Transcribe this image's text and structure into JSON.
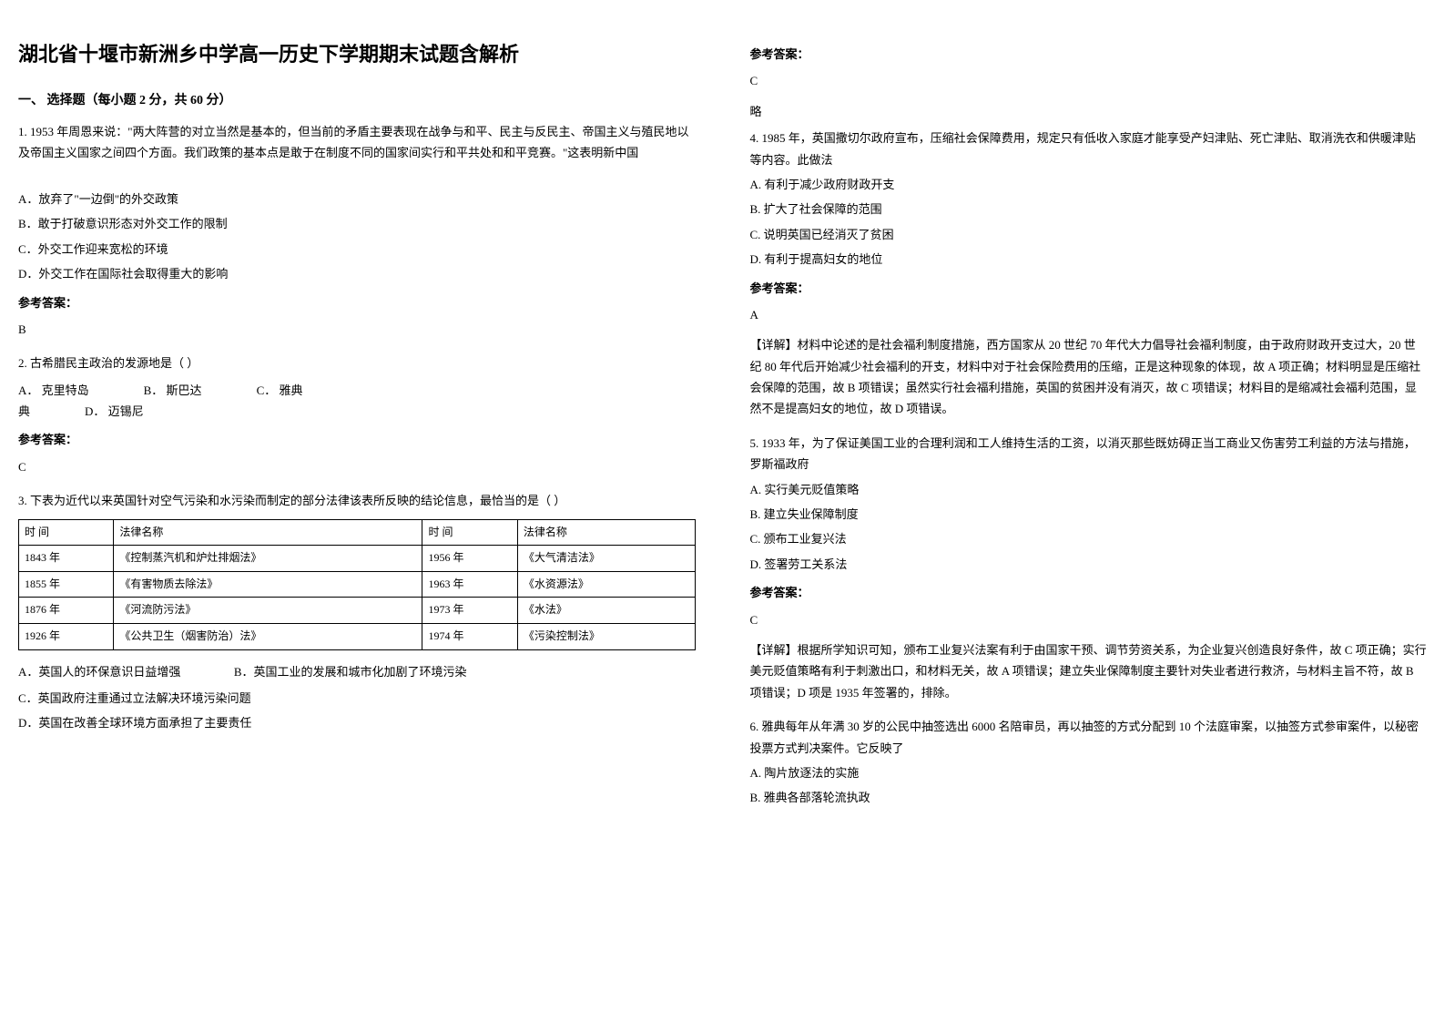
{
  "title": "湖北省十堰市新洲乡中学高一历史下学期期末试题含解析",
  "section1_heading": "一、 选择题（每小题 2 分，共 60 分）",
  "q1": {
    "text": "1. 1953 年周恩来说：\"两大阵营的对立当然是基本的，但当前的矛盾主要表现在战争与和平、民主与反民主、帝国主义与殖民地以及帝国主义国家之间四个方面。我们政策的基本点是敢于在制度不同的国家间实行和平共处和和平竞赛。\"这表明新中国",
    "optA": "A．放弃了\"一边倒\"的外交政策",
    "optB": "B．敢于打破意识形态对外交工作的限制",
    "optC": "C．外交工作迎来宽松的环境",
    "optD": "D．外交工作在国际社会取得重大的影响",
    "answer_label": "参考答案：",
    "answer": "B"
  },
  "q2": {
    "text": "2. 古希腊民主政治的发源地是（   ）",
    "optA": "A． 克里特岛",
    "optB": "B． 斯巴达",
    "optC": "C． 雅典",
    "optD": "D． 迈锡尼",
    "answer_label": "参考答案：",
    "answer": "C"
  },
  "q3": {
    "text": "3. 下表为近代以来英国针对空气污染和水污染而制定的部分法律该表所反映的结论信息，最恰当的是（    ）",
    "col1": "时     间",
    "col2": "法律名称",
    "col3": "时     间",
    "col4": "法律名称",
    "rows": [
      [
        "1843 年",
        "《控制蒸汽机和炉灶排烟法》",
        "1956 年",
        "《大气清洁法》"
      ],
      [
        "1855 年",
        "《有害物质去除法》",
        "1963 年",
        "《水资源法》"
      ],
      [
        "1876 年",
        "《河流防污法》",
        "1973 年",
        "《水法》"
      ],
      [
        "1926 年",
        "《公共卫生（烟害防治）法》",
        "1974 年",
        "《污染控制法》"
      ]
    ],
    "optA": "A．英国人的环保意识日益增强",
    "optB": "B．英国工业的发展和城市化加剧了环境污染",
    "optC": "C．英国政府注重通过立法解决环境污染问题",
    "optD": "D．英国在改善全球环境方面承担了主要责任",
    "answer_label": "参考答案：",
    "answer": "C",
    "note": "略"
  },
  "q4": {
    "text": "4. 1985 年，英国撒切尔政府宣布，压缩社会保障费用，规定只有低收入家庭才能享受产妇津贴、死亡津贴、取消洗衣和供暖津贴等内容。此做法",
    "optA": "A. 有利于减少政府财政开支",
    "optB": "B. 扩大了社会保障的范围",
    "optC": "C. 说明英国已经消灭了贫困",
    "optD": "D. 有利于提高妇女的地位",
    "answer_label": "参考答案：",
    "answer": "A",
    "explain": "【详解】材料中论述的是社会福利制度措施，西方国家从 20 世纪 70 年代大力倡导社会福利制度，由于政府财政开支过大，20 世纪 80 年代后开始减少社会福利的开支，材料中对于社会保险费用的压缩，正是这种现象的体现，故 A 项正确；材料明显是压缩社会保障的范围，故 B 项错误；虽然实行社会福利措施，英国的贫困并没有消灭，故 C 项错误；材料目的是缩减社会福利范围，显然不是提高妇女的地位，故 D 项错误。"
  },
  "q5": {
    "text": "5. 1933 年，为了保证美国工业的合理利润和工人维持生活的工资，以消灭那些既妨碍正当工商业又伤害劳工利益的方法与措施，罗斯福政府",
    "optA": "A. 实行美元贬值策略",
    "optB": "B. 建立失业保障制度",
    "optC": "C. 颁布工业复兴法",
    "optD": "D. 签署劳工关系法",
    "answer_label": "参考答案：",
    "answer": "C",
    "explain": "【详解】根据所学知识可知，颁布工业复兴法案有利于由国家干预、调节劳资关系，为企业复兴创造良好条件，故 C 项正确；实行美元贬值策略有利于刺激出口，和材料无关，故 A 项错误；建立失业保障制度主要针对失业者进行救济，与材料主旨不符，故 B 项错误；D 项是 1935 年签署的，排除。"
  },
  "q6": {
    "text": "6. 雅典每年从年满 30 岁的公民中抽签选出 6000 名陪审员，再以抽签的方式分配到 10 个法庭审案，以抽签方式参审案件，以秘密投票方式判决案件。它反映了",
    "optA": "A. 陶片放逐法的实施",
    "optB": "B. 雅典各部落轮流执政"
  }
}
